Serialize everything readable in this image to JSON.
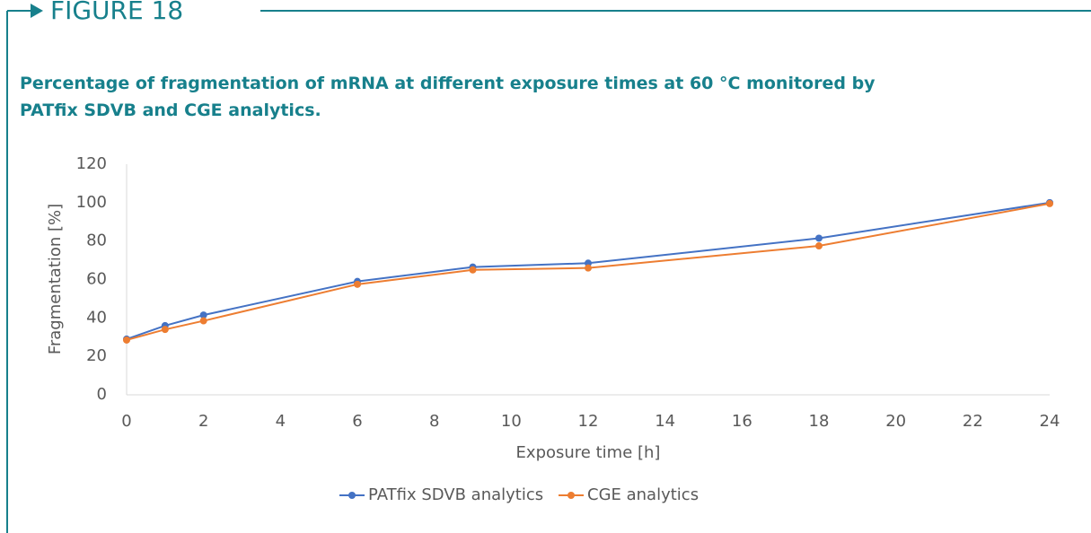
{
  "header": {
    "label": "FIGURE 18"
  },
  "chart_data": {
    "type": "line",
    "title": "Percentage of fragmentation of mRNA at different exposure times at 60 °C monitored by PATfix SDVB and CGE analytics.",
    "x_label": "Exposure time [h]",
    "y_label": "Fragmentation [%]",
    "x": [
      0,
      1,
      2,
      6,
      9,
      12,
      18,
      24
    ],
    "series": [
      {
        "name": "PATfix SDVB analytics",
        "color": "#4472c4",
        "values": [
          29,
          36,
          41.5,
          59,
          66.5,
          68.5,
          81.5,
          100
        ]
      },
      {
        "name": "CGE analytics",
        "color": "#ed7d31",
        "values": [
          28.5,
          34,
          38.5,
          57.5,
          65,
          66,
          77.5,
          99.5
        ]
      }
    ],
    "xlim": [
      0,
      24
    ],
    "xticks": [
      0,
      2,
      4,
      6,
      8,
      10,
      12,
      14,
      16,
      18,
      20,
      22,
      24
    ],
    "ylim": [
      0,
      120
    ],
    "yticks": [
      0,
      20,
      40,
      60,
      80,
      100,
      120
    ],
    "grid": false,
    "legend": "bottom"
  }
}
